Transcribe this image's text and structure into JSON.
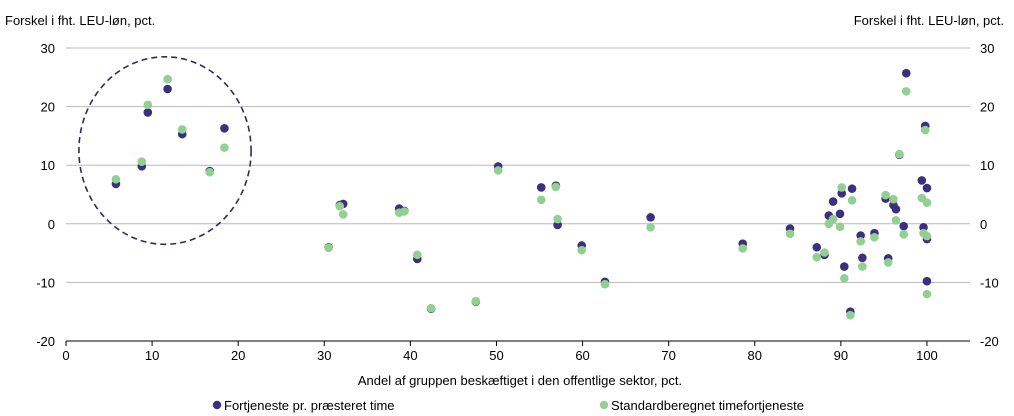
{
  "chart_data": {
    "type": "scatter",
    "ylabel_left": "Forskel i fht. LEU-løn, pct.",
    "ylabel_right": "Forskel i fht. LEU-løn, pct.",
    "xlabel": "Andel af gruppen beskæftiget i den offentlige sektor, pct.",
    "xlim": [
      0,
      105
    ],
    "ylim": [
      -20,
      30
    ],
    "x_ticks": [
      0,
      10,
      20,
      30,
      40,
      50,
      60,
      70,
      80,
      90,
      100
    ],
    "y_ticks": [
      30,
      20,
      10,
      0,
      -10,
      -20
    ],
    "grid": "horizontal",
    "legend_position": "bottom",
    "highlight_circle": {
      "cx": 11.5,
      "cy": 12.5,
      "rx": 10,
      "ry": 16
    },
    "series": [
      {
        "name": "Fortjeneste pr. præsteret time",
        "color": "#3d2f7f",
        "points": [
          [
            5.8,
            6.8
          ],
          [
            8.8,
            9.8
          ],
          [
            9.5,
            19
          ],
          [
            11.8,
            23
          ],
          [
            13.5,
            15.3
          ],
          [
            16.7,
            9
          ],
          [
            18.4,
            16.3
          ],
          [
            30.5,
            -4
          ],
          [
            31.8,
            3.2
          ],
          [
            32.2,
            3.4
          ],
          [
            38.7,
            2.6
          ],
          [
            39.3,
            2.2
          ],
          [
            40.8,
            -6
          ],
          [
            42.4,
            -14.5
          ],
          [
            47.6,
            -13.3
          ],
          [
            50.2,
            9.8
          ],
          [
            55.2,
            6.2
          ],
          [
            56.9,
            6.5
          ],
          [
            57.1,
            -0.2
          ],
          [
            59.9,
            -3.7
          ],
          [
            62.6,
            -9.9
          ],
          [
            67.9,
            1.1
          ],
          [
            78.6,
            -3.4
          ],
          [
            84.1,
            -0.8
          ],
          [
            87.2,
            -4
          ],
          [
            88.1,
            -5.3
          ],
          [
            88.6,
            1.4
          ],
          [
            89.1,
            3.8
          ],
          [
            89.9,
            1.7
          ],
          [
            90.1,
            5.2
          ],
          [
            90.4,
            -7.3
          ],
          [
            91.1,
            -15
          ],
          [
            91.3,
            6
          ],
          [
            92.3,
            -2
          ],
          [
            92.5,
            -5.8
          ],
          [
            93.9,
            -1.6
          ],
          [
            95.2,
            4.3
          ],
          [
            95.5,
            -5.9
          ],
          [
            96.1,
            3.2
          ],
          [
            96.4,
            2.5
          ],
          [
            96.8,
            11.8
          ],
          [
            97.3,
            -0.4
          ],
          [
            97.6,
            25.7
          ],
          [
            99.4,
            7.4
          ],
          [
            99.6,
            -0.6
          ],
          [
            99.8,
            16.7
          ],
          [
            100,
            6.1
          ],
          [
            100,
            -2.6
          ],
          [
            100,
            -9.8
          ]
        ]
      },
      {
        "name": "Standardberegnet timefortjeneste",
        "color": "#92d091",
        "points": [
          [
            5.8,
            7.6
          ],
          [
            8.8,
            10.6
          ],
          [
            9.5,
            20.3
          ],
          [
            11.8,
            24.7
          ],
          [
            13.5,
            16.1
          ],
          [
            16.7,
            8.8
          ],
          [
            18.4,
            13
          ],
          [
            30.5,
            -4.1
          ],
          [
            31.8,
            3
          ],
          [
            32.2,
            1.6
          ],
          [
            38.7,
            1.9
          ],
          [
            39.3,
            2.1
          ],
          [
            40.8,
            -5.3
          ],
          [
            42.4,
            -14.4
          ],
          [
            47.6,
            -13.2
          ],
          [
            50.2,
            9.1
          ],
          [
            55.2,
            4.1
          ],
          [
            56.9,
            6.3
          ],
          [
            57.1,
            0.8
          ],
          [
            59.9,
            -4.5
          ],
          [
            62.6,
            -10.3
          ],
          [
            67.9,
            -0.6
          ],
          [
            78.6,
            -4.2
          ],
          [
            84.1,
            -1.7
          ],
          [
            87.2,
            -5.7
          ],
          [
            88.1,
            -4.9
          ],
          [
            88.6,
            0
          ],
          [
            89.1,
            0.8
          ],
          [
            89.9,
            -0.5
          ],
          [
            90.1,
            6.2
          ],
          [
            90.4,
            -9.3
          ],
          [
            91.1,
            -15.6
          ],
          [
            91.3,
            4
          ],
          [
            92.3,
            -3
          ],
          [
            92.5,
            -7.3
          ],
          [
            93.9,
            -2.3
          ],
          [
            95.2,
            4.9
          ],
          [
            95.5,
            -6.6
          ],
          [
            96.1,
            4.2
          ],
          [
            96.4,
            0.6
          ],
          [
            96.8,
            11.9
          ],
          [
            97.3,
            -1.8
          ],
          [
            97.6,
            22.6
          ],
          [
            99.4,
            4.4
          ],
          [
            99.6,
            -1.6
          ],
          [
            99.8,
            16
          ],
          [
            100,
            3.6
          ],
          [
            100,
            -2.1
          ],
          [
            100,
            -12
          ]
        ]
      }
    ]
  }
}
